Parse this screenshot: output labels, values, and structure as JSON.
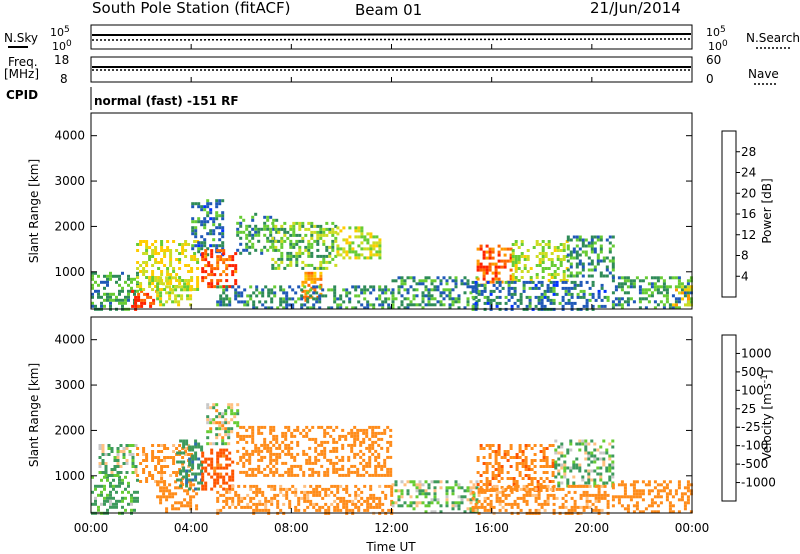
{
  "header": {
    "title": "South Pole Station (fitACF)",
    "beam": "Beam 01",
    "date": "21/Jun/2014"
  },
  "summary_panel": {
    "nsky_label": "N.Sky",
    "nsky_ticks": [
      "10^5",
      "10^0"
    ],
    "nsearch_label": "N.Search",
    "nsearch_ticks": [
      "10^5",
      "10^0"
    ],
    "freq_label": "Freq.",
    "freq_unit": "[MHz]",
    "freq_ticks": [
      "18",
      "8"
    ],
    "nave_label": "Nave",
    "nave_ticks": [
      "60",
      "0"
    ],
    "cpid_label": "CPID",
    "cpid_text": "normal (fast) -151 RF"
  },
  "colors": {
    "power_scale": [
      "#0033ff",
      "#1f58b8",
      "#2e8b57",
      "#66cc33",
      "#ccdd22",
      "#ffcc00",
      "#ff9900",
      "#ff6600",
      "#ff2200"
    ],
    "velocity_scale": [
      "#ff0000",
      "#ff5500",
      "#ff8c1a",
      "#ffc080",
      "#c8c8c8",
      "#66cc33",
      "#3d9a5c",
      "#2e6fae",
      "#1f3fbf"
    ]
  },
  "chart_data": [
    {
      "type": "heatmap",
      "name": "power",
      "ylabel": "Slant Range [km]",
      "yticks": [
        1000,
        2000,
        3000,
        4000
      ],
      "ylim": [
        180,
        4500
      ],
      "xlim": [
        0,
        24
      ],
      "colorbar": {
        "label": "Power [dB]",
        "ticks": [
          "28",
          "24",
          "20",
          "16",
          "12",
          "8",
          "4"
        ],
        "range": [
          0,
          30
        ]
      },
      "regions": [
        {
          "x": [
            0.0,
            1.8
          ],
          "y": [
            180,
            1000
          ],
          "value": 9
        },
        {
          "x": [
            1.6,
            2.6
          ],
          "y": [
            180,
            600
          ],
          "value": 27
        },
        {
          "x": [
            1.8,
            4.2
          ],
          "y": [
            600,
            1700
          ],
          "value": 16
        },
        {
          "x": [
            2.6,
            4.0
          ],
          "y": [
            250,
            900
          ],
          "value": 14
        },
        {
          "x": [
            4.0,
            5.2
          ],
          "y": [
            1400,
            2600
          ],
          "value": 7
        },
        {
          "x": [
            4.4,
            5.8
          ],
          "y": [
            700,
            1500
          ],
          "value": 26
        },
        {
          "x": [
            5.8,
            7.4
          ],
          "y": [
            1400,
            2300
          ],
          "value": 9
        },
        {
          "x": [
            7.2,
            9.8
          ],
          "y": [
            1100,
            2100
          ],
          "value": 12
        },
        {
          "x": [
            8.4,
            9.2
          ],
          "y": [
            400,
            1000
          ],
          "value": 22
        },
        {
          "x": [
            9.8,
            11.5
          ],
          "y": [
            1300,
            2000
          ],
          "value": 14
        },
        {
          "x": [
            5.0,
            12.0
          ],
          "y": [
            180,
            700
          ],
          "value": 8
        },
        {
          "x": [
            12.0,
            15.4
          ],
          "y": [
            180,
            900
          ],
          "value": 9
        },
        {
          "x": [
            15.4,
            16.8
          ],
          "y": [
            700,
            1600
          ],
          "value": 25
        },
        {
          "x": [
            16.8,
            19.0
          ],
          "y": [
            800,
            1700
          ],
          "value": 14
        },
        {
          "x": [
            19.0,
            20.8
          ],
          "y": [
            900,
            1800
          ],
          "value": 9
        },
        {
          "x": [
            15.2,
            20.6
          ],
          "y": [
            180,
            800
          ],
          "value": 7
        },
        {
          "x": [
            20.8,
            24.0
          ],
          "y": [
            180,
            900
          ],
          "value": 9
        },
        {
          "x": [
            23.2,
            24.0
          ],
          "y": [
            300,
            700
          ],
          "value": 18
        }
      ]
    },
    {
      "type": "heatmap",
      "name": "velocity",
      "ylabel": "Slant Range [km]",
      "yticks": [
        1000,
        2000,
        3000,
        4000
      ],
      "ylim": [
        180,
        4500
      ],
      "xlabel": "Time UT",
      "xticks": [
        "00:00",
        "04:00",
        "08:00",
        "12:00",
        "16:00",
        "20:00",
        "00:00"
      ],
      "xlim": [
        0,
        24
      ],
      "colorbar": {
        "label": "Velocity [m s^-1]",
        "ticks": [
          "1000",
          "500",
          "100",
          "25",
          "-25",
          "-100",
          "-500",
          "-1000"
        ],
        "range": [
          -1000,
          1000
        ]
      },
      "regions": [
        {
          "x": [
            0.0,
            1.8
          ],
          "y": [
            180,
            1000
          ],
          "value": 150
        },
        {
          "x": [
            0.3,
            1.8
          ],
          "y": [
            1000,
            1700
          ],
          "value": 80
        },
        {
          "x": [
            1.8,
            4.0
          ],
          "y": [
            800,
            1700
          ],
          "value": -200
        },
        {
          "x": [
            2.6,
            4.2
          ],
          "y": [
            200,
            900
          ],
          "value": -300
        },
        {
          "x": [
            3.4,
            4.4
          ],
          "y": [
            700,
            1800
          ],
          "value": 400
        },
        {
          "x": [
            4.4,
            5.6
          ],
          "y": [
            700,
            1600
          ],
          "value": -600
        },
        {
          "x": [
            4.6,
            5.8
          ],
          "y": [
            1700,
            2600
          ],
          "value": 0
        },
        {
          "x": [
            5.8,
            12.0
          ],
          "y": [
            1000,
            2100
          ],
          "value": -250
        },
        {
          "x": [
            5.0,
            12.0
          ],
          "y": [
            180,
            800
          ],
          "value": -200
        },
        {
          "x": [
            12.0,
            15.4
          ],
          "y": [
            180,
            900
          ],
          "value": 60
        },
        {
          "x": [
            15.4,
            18.5
          ],
          "y": [
            700,
            1700
          ],
          "value": -400
        },
        {
          "x": [
            18.5,
            20.8
          ],
          "y": [
            800,
            1800
          ],
          "value": 80
        },
        {
          "x": [
            15.2,
            20.6
          ],
          "y": [
            180,
            800
          ],
          "value": -200
        },
        {
          "x": [
            20.8,
            24.0
          ],
          "y": [
            180,
            900
          ],
          "value": -250
        }
      ]
    }
  ]
}
